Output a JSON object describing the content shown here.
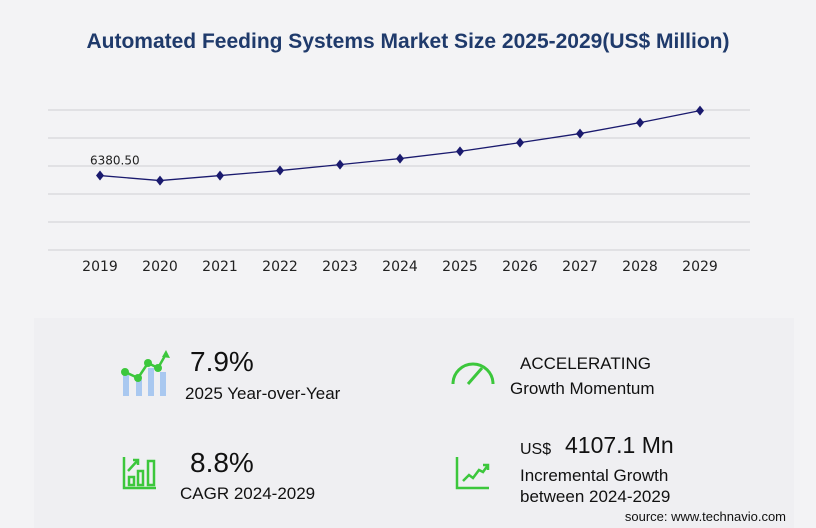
{
  "title": "Automated Feeding Systems Market Size 2025-2029(US$ Million)",
  "chart_data": {
    "type": "line",
    "title": "Automated Feeding Systems Market Size 2025-2029(US$ Million)",
    "categories": [
      "2019",
      "2020",
      "2021",
      "2022",
      "2023",
      "2024",
      "2025",
      "2026",
      "2027",
      "2028",
      "2029"
    ],
    "values": [
      6380.5,
      5950,
      6380,
      6810,
      7320,
      7836,
      8455,
      9205,
      9980,
      10920,
      11943
    ],
    "data_labels": {
      "2019": "6380.50"
    },
    "ylim": [
      0,
      12000
    ],
    "grid": true,
    "line_color": "#1a1a6e"
  },
  "stats": {
    "yoy_value": "7.9%",
    "yoy_label": "2025 Year-over-Year",
    "momentum_value": "ACCELERATING",
    "momentum_label": "Growth Momentum",
    "cagr_value": "8.8%",
    "cagr_label": "CAGR 2024-2029",
    "incr_currency": "US$",
    "incr_value": "4107.1 Mn",
    "incr_label1": "Incremental Growth",
    "incr_label2": "between 2024-2029"
  },
  "source": "source: www.technavio.com",
  "colors": {
    "accent_green": "#3cc73c",
    "title": "#1f3a6b",
    "bar_blue": "#a9c8f0"
  }
}
